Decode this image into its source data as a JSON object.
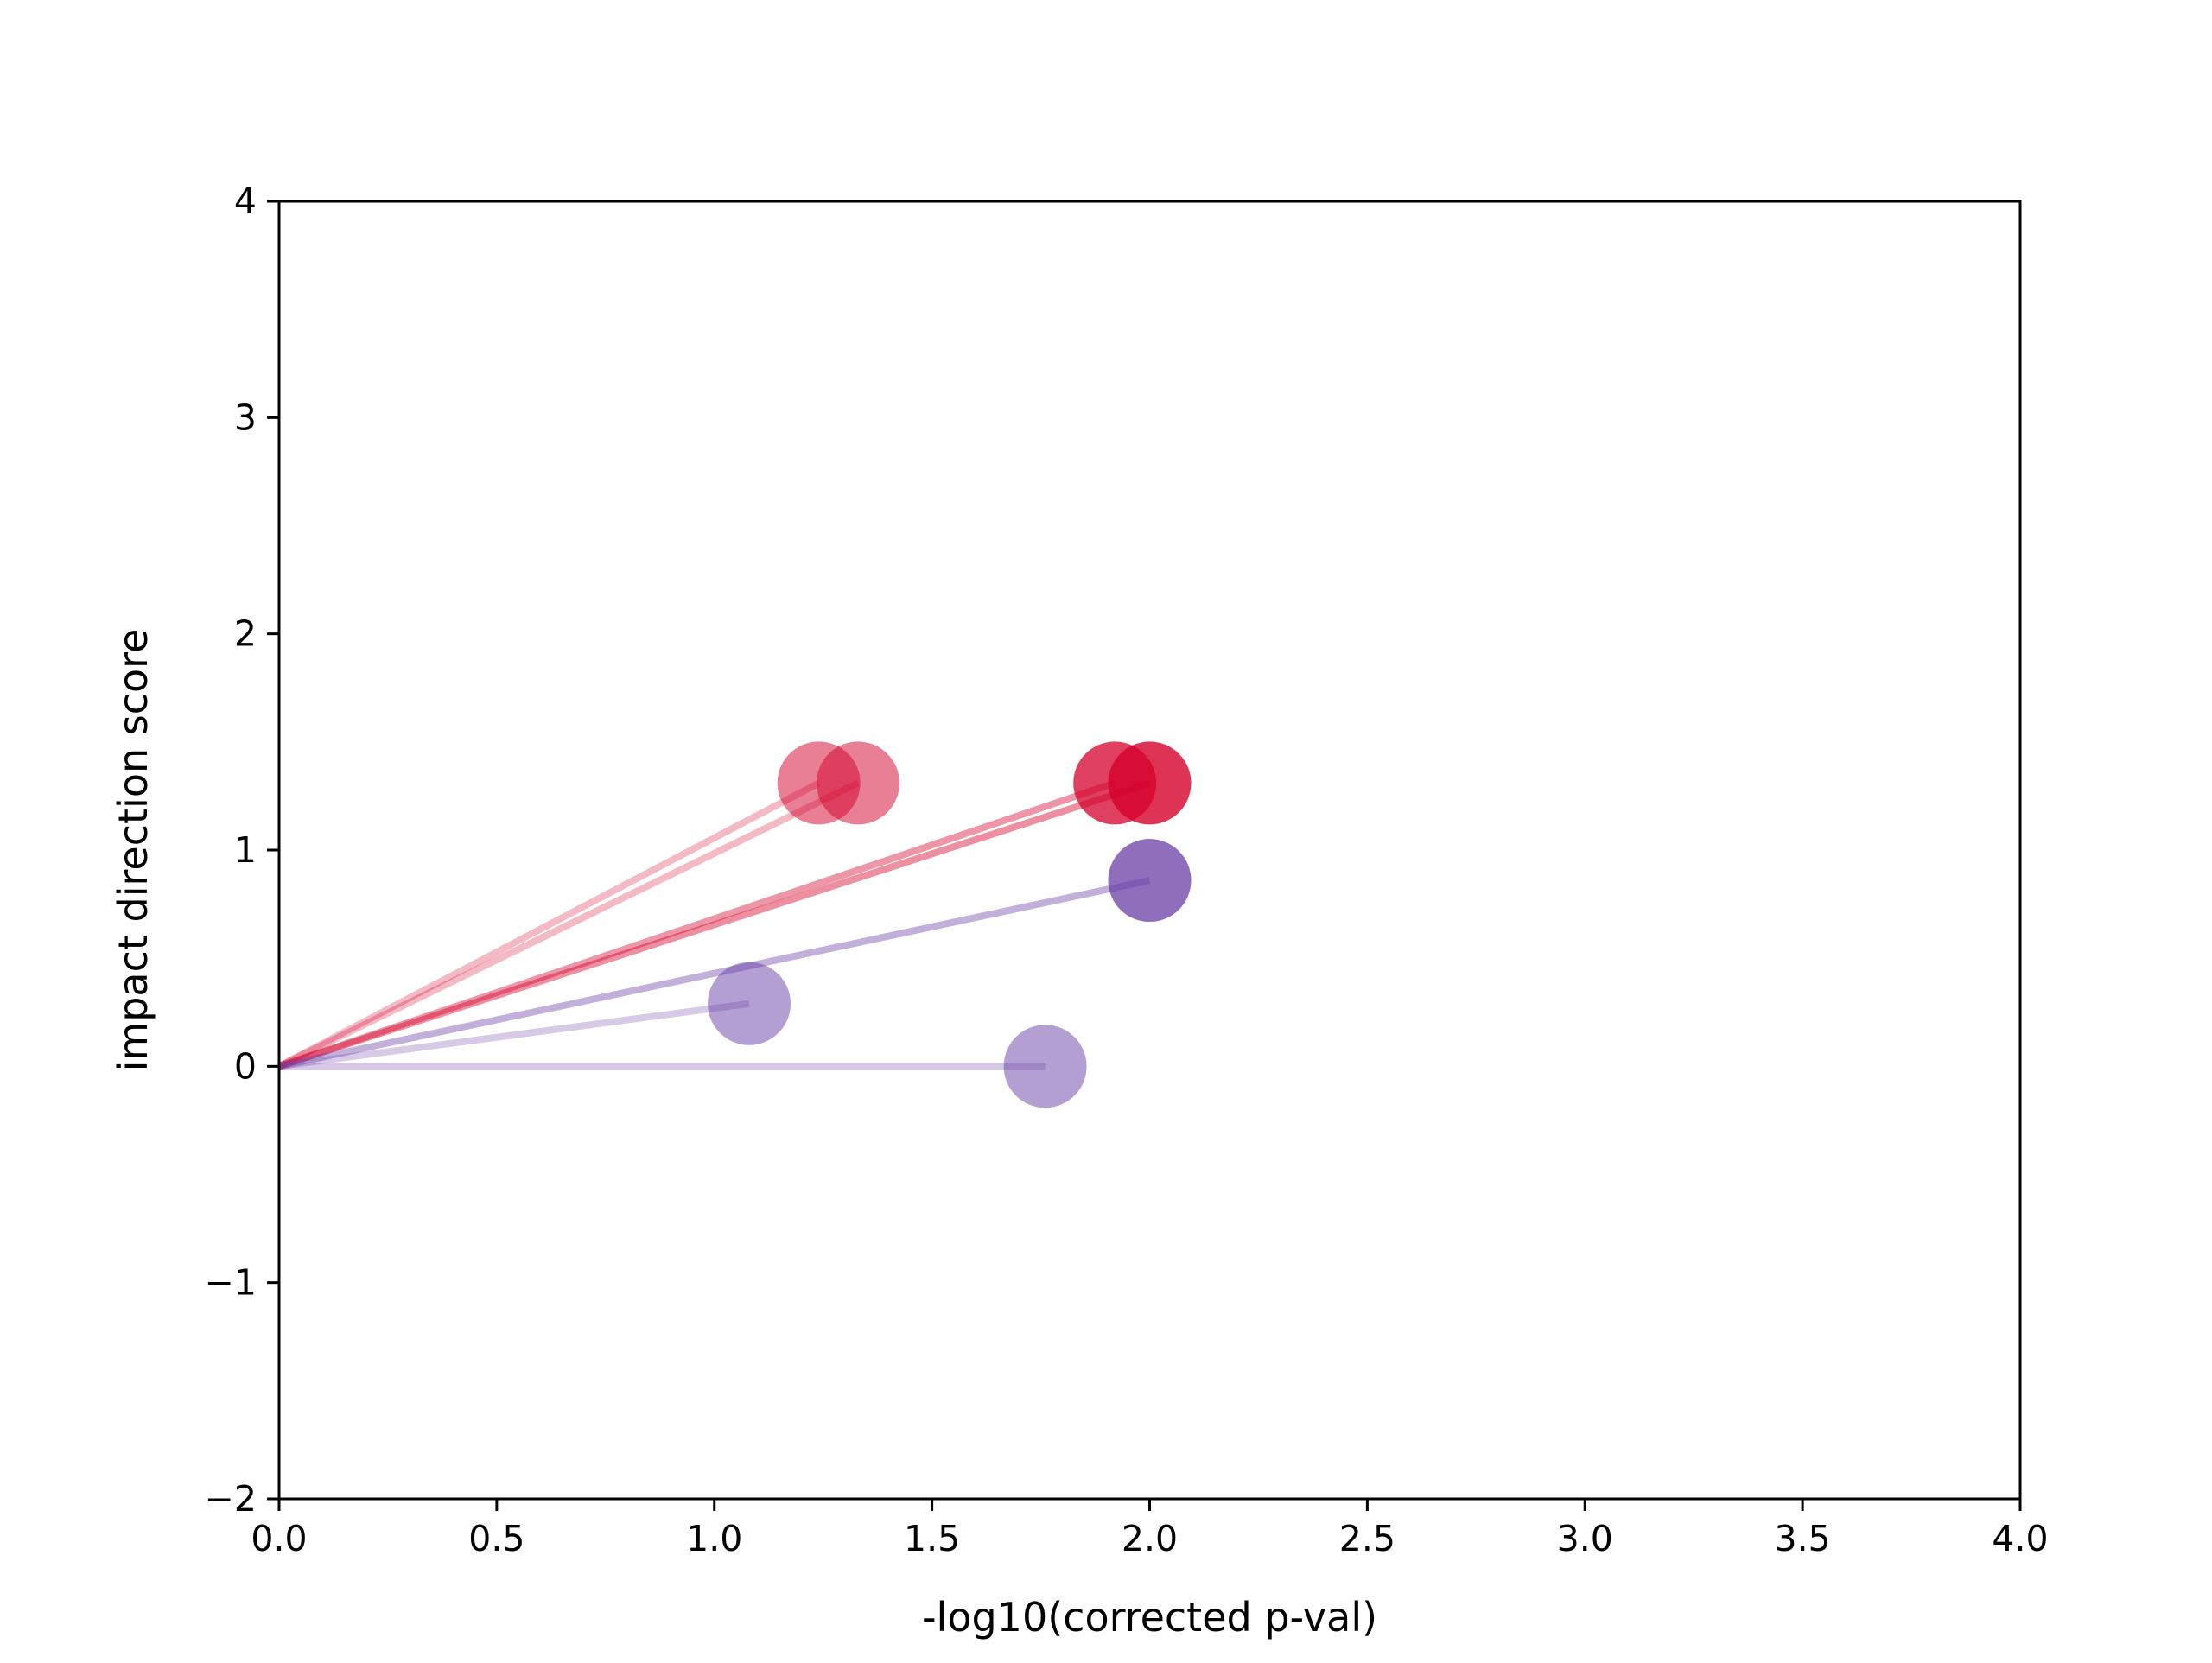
{
  "chart_data": {
    "type": "scatter",
    "title": "",
    "xlabel": "-log10(corrected p-val)",
    "ylabel": "impact direction score",
    "xlim": [
      0,
      4
    ],
    "ylim": [
      -2,
      4
    ],
    "xticks": [
      "0.0",
      "0.5",
      "1.0",
      "1.5",
      "2.0",
      "2.5",
      "3.0",
      "3.5",
      "4.0"
    ],
    "yticks": [
      "−2",
      "−1",
      "0",
      "1",
      "2",
      "3",
      "4"
    ],
    "grid": false,
    "legend": "none",
    "series": [
      {
        "color": "#d4002a",
        "points": [
          {
            "x": 1.24,
            "y": 1.31,
            "opacity": 0.5
          },
          {
            "x": 1.33,
            "y": 1.31,
            "opacity": 0.5
          },
          {
            "x": 1.92,
            "y": 1.31,
            "opacity": 0.75
          },
          {
            "x": 2.0,
            "y": 1.31,
            "opacity": 0.8
          }
        ]
      },
      {
        "color": "#6a3fa5",
        "points": [
          {
            "x": 1.08,
            "y": 0.29,
            "opacity": 0.5
          },
          {
            "x": 1.76,
            "y": 0.0,
            "opacity": 0.5
          },
          {
            "x": 2.0,
            "y": 0.86,
            "opacity": 0.75
          }
        ]
      }
    ],
    "rays_from_origin": true
  }
}
